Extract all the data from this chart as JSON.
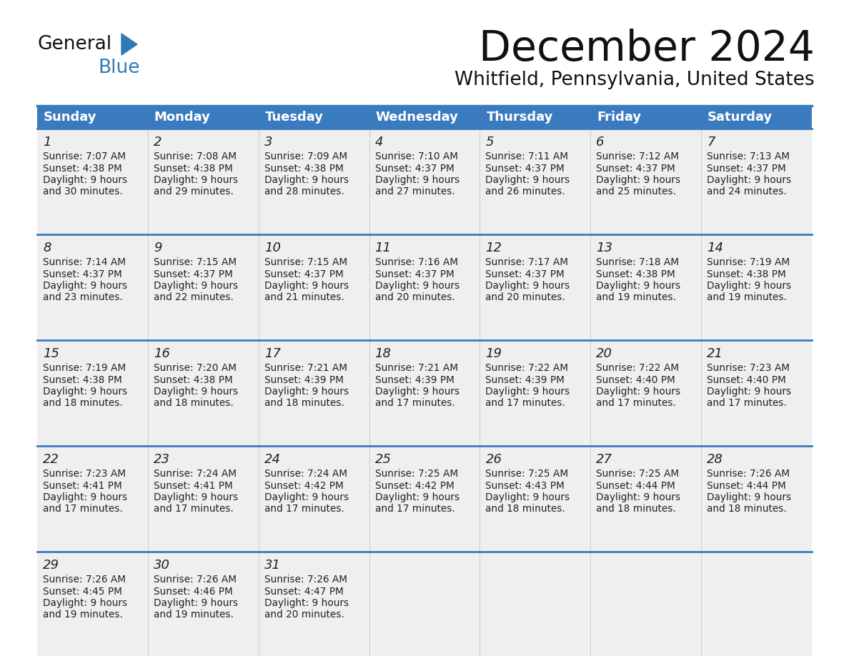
{
  "title": "December 2024",
  "subtitle": "Whitfield, Pennsylvania, United States",
  "header_color": "#3a7bbf",
  "header_text_color": "#ffffff",
  "row_bg_color": "#efefef",
  "border_color": "#3a7bbf",
  "text_color": "#222222",
  "days_of_week": [
    "Sunday",
    "Monday",
    "Tuesday",
    "Wednesday",
    "Thursday",
    "Friday",
    "Saturday"
  ],
  "weeks": [
    [
      {
        "day": "1",
        "sunrise": "7:07 AM",
        "sunset": "4:38 PM",
        "daylight_h": "9 hours",
        "daylight_m": "30 minutes"
      },
      {
        "day": "2",
        "sunrise": "7:08 AM",
        "sunset": "4:38 PM",
        "daylight_h": "9 hours",
        "daylight_m": "29 minutes"
      },
      {
        "day": "3",
        "sunrise": "7:09 AM",
        "sunset": "4:38 PM",
        "daylight_h": "9 hours",
        "daylight_m": "28 minutes"
      },
      {
        "day": "4",
        "sunrise": "7:10 AM",
        "sunset": "4:37 PM",
        "daylight_h": "9 hours",
        "daylight_m": "27 minutes"
      },
      {
        "day": "5",
        "sunrise": "7:11 AM",
        "sunset": "4:37 PM",
        "daylight_h": "9 hours",
        "daylight_m": "26 minutes"
      },
      {
        "day": "6",
        "sunrise": "7:12 AM",
        "sunset": "4:37 PM",
        "daylight_h": "9 hours",
        "daylight_m": "25 minutes"
      },
      {
        "day": "7",
        "sunrise": "7:13 AM",
        "sunset": "4:37 PM",
        "daylight_h": "9 hours",
        "daylight_m": "24 minutes"
      }
    ],
    [
      {
        "day": "8",
        "sunrise": "7:14 AM",
        "sunset": "4:37 PM",
        "daylight_h": "9 hours",
        "daylight_m": "23 minutes"
      },
      {
        "day": "9",
        "sunrise": "7:15 AM",
        "sunset": "4:37 PM",
        "daylight_h": "9 hours",
        "daylight_m": "22 minutes"
      },
      {
        "day": "10",
        "sunrise": "7:15 AM",
        "sunset": "4:37 PM",
        "daylight_h": "9 hours",
        "daylight_m": "21 minutes"
      },
      {
        "day": "11",
        "sunrise": "7:16 AM",
        "sunset": "4:37 PM",
        "daylight_h": "9 hours",
        "daylight_m": "20 minutes"
      },
      {
        "day": "12",
        "sunrise": "7:17 AM",
        "sunset": "4:37 PM",
        "daylight_h": "9 hours",
        "daylight_m": "20 minutes"
      },
      {
        "day": "13",
        "sunrise": "7:18 AM",
        "sunset": "4:38 PM",
        "daylight_h": "9 hours",
        "daylight_m": "19 minutes"
      },
      {
        "day": "14",
        "sunrise": "7:19 AM",
        "sunset": "4:38 PM",
        "daylight_h": "9 hours",
        "daylight_m": "19 minutes"
      }
    ],
    [
      {
        "day": "15",
        "sunrise": "7:19 AM",
        "sunset": "4:38 PM",
        "daylight_h": "9 hours",
        "daylight_m": "18 minutes"
      },
      {
        "day": "16",
        "sunrise": "7:20 AM",
        "sunset": "4:38 PM",
        "daylight_h": "9 hours",
        "daylight_m": "18 minutes"
      },
      {
        "day": "17",
        "sunrise": "7:21 AM",
        "sunset": "4:39 PM",
        "daylight_h": "9 hours",
        "daylight_m": "18 minutes"
      },
      {
        "day": "18",
        "sunrise": "7:21 AM",
        "sunset": "4:39 PM",
        "daylight_h": "9 hours",
        "daylight_m": "17 minutes"
      },
      {
        "day": "19",
        "sunrise": "7:22 AM",
        "sunset": "4:39 PM",
        "daylight_h": "9 hours",
        "daylight_m": "17 minutes"
      },
      {
        "day": "20",
        "sunrise": "7:22 AM",
        "sunset": "4:40 PM",
        "daylight_h": "9 hours",
        "daylight_m": "17 minutes"
      },
      {
        "day": "21",
        "sunrise": "7:23 AM",
        "sunset": "4:40 PM",
        "daylight_h": "9 hours",
        "daylight_m": "17 minutes"
      }
    ],
    [
      {
        "day": "22",
        "sunrise": "7:23 AM",
        "sunset": "4:41 PM",
        "daylight_h": "9 hours",
        "daylight_m": "17 minutes"
      },
      {
        "day": "23",
        "sunrise": "7:24 AM",
        "sunset": "4:41 PM",
        "daylight_h": "9 hours",
        "daylight_m": "17 minutes"
      },
      {
        "day": "24",
        "sunrise": "7:24 AM",
        "sunset": "4:42 PM",
        "daylight_h": "9 hours",
        "daylight_m": "17 minutes"
      },
      {
        "day": "25",
        "sunrise": "7:25 AM",
        "sunset": "4:42 PM",
        "daylight_h": "9 hours",
        "daylight_m": "17 minutes"
      },
      {
        "day": "26",
        "sunrise": "7:25 AM",
        "sunset": "4:43 PM",
        "daylight_h": "9 hours",
        "daylight_m": "18 minutes"
      },
      {
        "day": "27",
        "sunrise": "7:25 AM",
        "sunset": "4:44 PM",
        "daylight_h": "9 hours",
        "daylight_m": "18 minutes"
      },
      {
        "day": "28",
        "sunrise": "7:26 AM",
        "sunset": "4:44 PM",
        "daylight_h": "9 hours",
        "daylight_m": "18 minutes"
      }
    ],
    [
      {
        "day": "29",
        "sunrise": "7:26 AM",
        "sunset": "4:45 PM",
        "daylight_h": "9 hours",
        "daylight_m": "19 minutes"
      },
      {
        "day": "30",
        "sunrise": "7:26 AM",
        "sunset": "4:46 PM",
        "daylight_h": "9 hours",
        "daylight_m": "19 minutes"
      },
      {
        "day": "31",
        "sunrise": "7:26 AM",
        "sunset": "4:47 PM",
        "daylight_h": "9 hours",
        "daylight_m": "20 minutes"
      },
      null,
      null,
      null,
      null
    ]
  ]
}
